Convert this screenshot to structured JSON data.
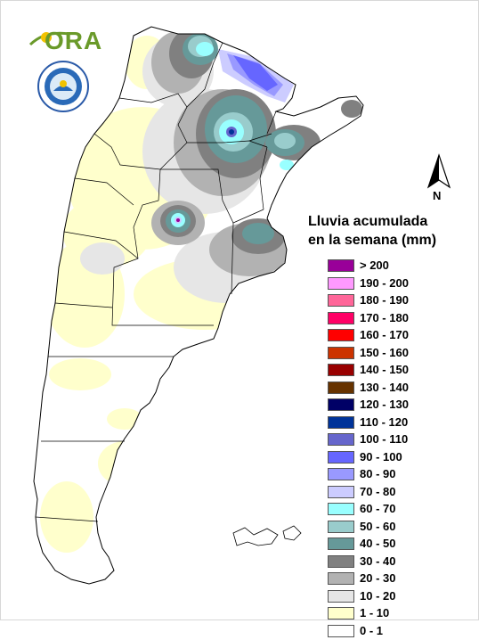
{
  "title": {
    "line1": "Lluvia acumulada",
    "line2": "en la semana (mm)"
  },
  "north_label": "N",
  "logos": {
    "ora_text": "ORA",
    "ora_icon": "sun-arc-logo-icon",
    "smn_icon": "servicio-meteorologico-nacional-seal-icon"
  },
  "legend": [
    {
      "label": "> 200",
      "color": "#990099"
    },
    {
      "label": "190 - 200",
      "color": "#ff99ff"
    },
    {
      "label": "180 - 190",
      "color": "#ff6699"
    },
    {
      "label": "170 - 180",
      "color": "#ff0066"
    },
    {
      "label": "160 - 170",
      "color": "#ff0000"
    },
    {
      "label": "150 - 160",
      "color": "#cc3300"
    },
    {
      "label": "140 - 150",
      "color": "#990000"
    },
    {
      "label": "130 - 140",
      "color": "#663300"
    },
    {
      "label": "120 - 130",
      "color": "#000066"
    },
    {
      "label": "110 - 120",
      "color": "#003399"
    },
    {
      "label": "100 - 110",
      "color": "#6666cc"
    },
    {
      "label": "90 - 100",
      "color": "#6666ff"
    },
    {
      "label": "80 - 90",
      "color": "#9999ff"
    },
    {
      "label": "70 - 80",
      "color": "#ccccff"
    },
    {
      "label": "60 - 70",
      "color": "#99ffff"
    },
    {
      "label": "50 - 60",
      "color": "#99cccc"
    },
    {
      "label": "40 - 50",
      "color": "#669999"
    },
    {
      "label": "30 - 40",
      "color": "#808080"
    },
    {
      "label": "20 - 30",
      "color": "#b2b2b2"
    },
    {
      "label": "10 - 20",
      "color": "#e6e6e6"
    },
    {
      "label": "1 - 10",
      "color": "#ffffcc"
    },
    {
      "label": "0 - 1",
      "color": "#ffffff"
    }
  ]
}
